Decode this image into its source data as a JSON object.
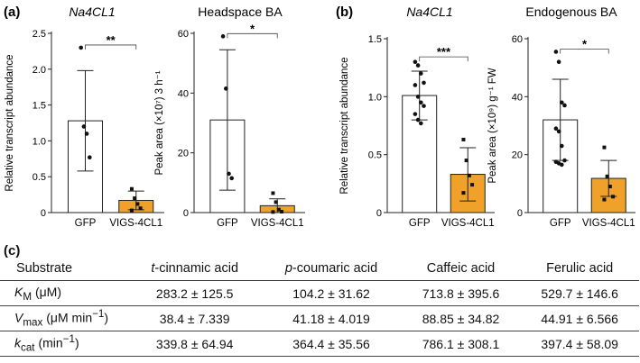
{
  "panels": {
    "a": "(a)",
    "b": "(b)",
    "c": "(c)"
  },
  "chart_data": [
    {
      "type": "bar",
      "title": "Na4CL1",
      "title_italic": true,
      "categories": [
        "GFP",
        "VIGS-4CL1"
      ],
      "ylabel": "Relative transcript abundance",
      "ylim": [
        0,
        2.5
      ],
      "yticks": [
        "0",
        "0.5",
        "1.0",
        "1.5",
        "2.0",
        "2.5"
      ],
      "values": [
        1.28,
        0.17
      ],
      "sd": [
        0.7,
        0.13
      ],
      "points": [
        [
          2.3,
          1.2,
          1.1,
          0.77
        ],
        [
          0.33,
          0.2,
          0.12,
          0.06,
          0.03
        ]
      ],
      "colors": [
        "#ffffff",
        "#f0a12a"
      ],
      "significance": "**",
      "bracket_y": 2.3
    },
    {
      "type": "bar",
      "title": "Headspace BA",
      "title_italic": false,
      "categories": [
        "GFP",
        "VIGS-4CL1"
      ],
      "ylabel": "Peak area (×10⁷) 3 h⁻¹",
      "ylim": [
        0,
        60
      ],
      "yticks": [
        "0",
        "20",
        "40",
        "60"
      ],
      "values": [
        31,
        2.3
      ],
      "sd": [
        23.5,
        2.3
      ],
      "points": [
        [
          59,
          41.5,
          13,
          11.5
        ],
        [
          6.5,
          3.5,
          1,
          0.3,
          0.2
        ]
      ],
      "colors": [
        "#ffffff",
        "#f0a12a"
      ],
      "significance": "*",
      "bracket_y": 59
    },
    {
      "type": "bar",
      "title": "Na4CL1",
      "title_italic": true,
      "categories": [
        "GFP",
        "VIGS-4CL1"
      ],
      "ylabel": "Relative transcript abundance",
      "ylim": [
        0,
        1.5
      ],
      "yticks": [
        "0",
        "0.5",
        "1.0",
        "1.5"
      ],
      "values": [
        1.01,
        0.33
      ],
      "sd": [
        0.21,
        0.23
      ],
      "points": [
        [
          1.3,
          1.27,
          1.2,
          1.12,
          1.1,
          1.0,
          0.95,
          0.92,
          0.85,
          0.8,
          0.77
        ],
        [
          0.63,
          0.45,
          0.32,
          0.24,
          0.17
        ]
      ],
      "colors": [
        "#ffffff",
        "#f0a12a"
      ],
      "significance": "***",
      "bracket_y": 1.32
    },
    {
      "type": "bar",
      "title": "Endogenous BA",
      "title_italic": false,
      "categories": [
        "GFP",
        "VIGS-4CL1"
      ],
      "ylabel": "Peak area (×10⁹) g⁻¹ FW",
      "ylim": [
        0,
        60
      ],
      "yticks": [
        "0",
        "20",
        "40",
        "60"
      ],
      "values": [
        32,
        11.8
      ],
      "sd": [
        14,
        6.2
      ],
      "points": [
        [
          55.5,
          52,
          38,
          37,
          29,
          28,
          23,
          18,
          17.5,
          17,
          16.5
        ],
        [
          22.5,
          12.5,
          9,
          5.5,
          4.5
        ]
      ],
      "colors": [
        "#ffffff",
        "#f0a12a"
      ],
      "significance": "*",
      "bracket_y": 55.5
    },
    {
      "type": "table",
      "headers": [
        "Substrate",
        "t-cinnamic acid",
        "p-coumaric acid",
        "Caffeic acid",
        "Ferulic acid"
      ],
      "rows": [
        {
          "label": "KM (μM)",
          "values": [
            "283.2 ± 125.5",
            "104.2 ± 31.62",
            "713.8 ± 395.6",
            "529.7 ± 146.6"
          ]
        },
        {
          "label": "Vmax (μM min−1)",
          "values": [
            "38.4 ± 7.339",
            "41.18 ± 4.019",
            "88.85 ± 34.82",
            "44.91 ± 6.566"
          ]
        },
        {
          "label": "kcat (min−1)",
          "values": [
            "339.8 ± 64.94",
            "364.4 ± 35.56",
            "786.1 ± 308.1",
            "397.4 ± 58.09"
          ]
        }
      ]
    }
  ],
  "table_display": {
    "header_prefix": [
      "",
      "t",
      "p",
      "",
      ""
    ],
    "header_rest": [
      "Substrate",
      "-cinnamic acid",
      "-coumaric acid",
      "Caffeic acid",
      "Ferulic acid"
    ],
    "rows": [
      {
        "sym": "K",
        "sub": "M",
        "sup": "",
        "unit": " (μM)"
      },
      {
        "sym": "V",
        "sub": "max",
        "sup": "",
        "unit": " (μM min",
        "unit_sup": "−1",
        "unit_close": ")"
      },
      {
        "sym": "k",
        "sub": "cat",
        "sup": "",
        "unit": " (min",
        "unit_sup": "−1",
        "unit_close": ")"
      }
    ]
  }
}
